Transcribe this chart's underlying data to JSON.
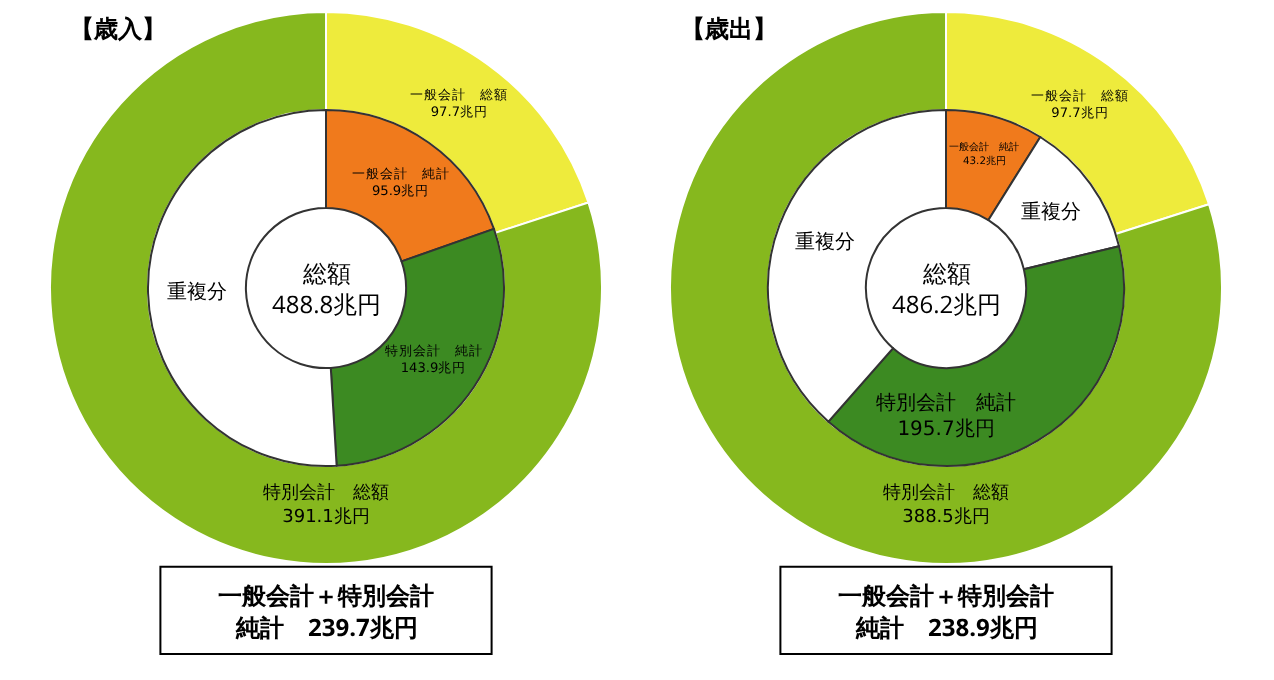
{
  "chart_data": [
    {
      "type": "donut",
      "title": "【歳入】",
      "categories": [
        "一般会計　総額",
        "特別会計　総額"
      ],
      "values": [
        97.7,
        391.1
      ],
      "colors": [
        "#eeeb3c",
        "#86b81e"
      ],
      "value_labels": [
        "97.7兆円",
        "391.1兆円"
      ],
      "annotations": [
        "一般会計＋特別会計",
        "純計　239.7兆円"
      ]
    },
    {
      "type": "donut",
      "categories": [
        "一般会計　純計",
        "特別会計　純計",
        "重複分"
      ],
      "values": [
        95.9,
        143.9,
        249.1
      ],
      "colors": [
        "#f07a1c",
        "#3c8a22",
        "#ffffff"
      ],
      "value_labels": [
        "95.9兆円",
        "143.9兆円",
        null
      ],
      "annotations": [
        "総額\n488.8兆円"
      ]
    },
    {
      "type": "donut",
      "title": "【歳出】",
      "categories": [
        "一般会計　総額",
        "特別会計　総額"
      ],
      "values": [
        97.7,
        388.5
      ],
      "colors": [
        "#eeeb3c",
        "#86b81e"
      ],
      "value_labels": [
        "97.7兆円",
        "388.5兆円"
      ],
      "annotations": [
        "一般会計＋特別会計",
        "純計　238.9兆円"
      ]
    },
    {
      "type": "donut",
      "categories": [
        "一般会計　純計",
        "重複分",
        "特別会計　純計",
        "重複分"
      ],
      "values": [
        43.2,
        60,
        195.7,
        187.3
      ],
      "colors": [
        "#f07a1c",
        "#ffffff",
        "#3c8a22",
        "#ffffff"
      ],
      "value_labels": [
        "43.2兆円",
        null,
        "195.7兆円",
        null
      ],
      "annotations": [
        "総額\n486.2兆円"
      ]
    }
  ]
}
